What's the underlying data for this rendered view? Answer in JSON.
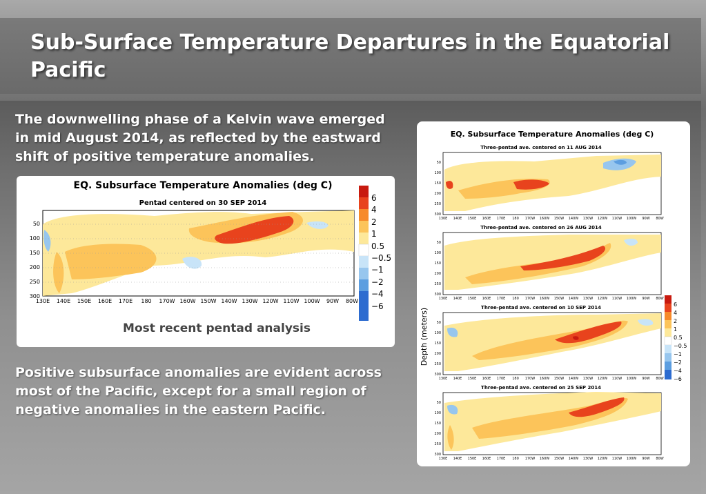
{
  "slide": {
    "title": "Sub-Surface Temperature Departures in the Equatorial Pacific",
    "paragraph1": "The downwelling phase of a Kelvin wave emerged in mid August 2014, as reflected by the eastward shift of positive temperature anomalies.",
    "paragraph2": "Positive subsurface anomalies are evident across most of the Pacific, except for a small region of negative anomalies in the eastern Pacific.",
    "caption": "Most recent pentad analysis"
  },
  "main_plot": {
    "title": "EQ. Subsurface Temperature Anomalies (deg C)",
    "subtitle": "Pentad centered on 30 SEP 2014"
  },
  "right_plot": {
    "title": "EQ. Subsurface Temperature Anomalies (deg C)",
    "ylabel": "Depth (meters)",
    "panels": [
      {
        "subtitle": "Three-pentad ave. centered on 11 AUG 2014"
      },
      {
        "subtitle": "Three-pentad ave. centered on 26 AUG 2014"
      },
      {
        "subtitle": "Three-pentad ave. centered on 10 SEP 2014"
      },
      {
        "subtitle": "Three-pentad ave. centered on 25 SEP 2014"
      }
    ]
  },
  "axes": {
    "x_ticks": [
      "130E",
      "140E",
      "150E",
      "160E",
      "170E",
      "180",
      "170W",
      "160W",
      "150W",
      "140W",
      "130W",
      "120W",
      "110W",
      "100W",
      "90W",
      "80W"
    ],
    "y_ticks": [
      "50",
      "100",
      "150",
      "200",
      "250",
      "300"
    ]
  },
  "legend": {
    "labels": [
      "6",
      "4",
      "2",
      "1",
      "0.5",
      "−0.5",
      "−1",
      "−2",
      "−4",
      "−6"
    ],
    "colors": [
      "#c81a0f",
      "#e8431d",
      "#f78a2a",
      "#fcc45a",
      "#fde89a",
      "#ffffff",
      "#c8e4f8",
      "#97c6ee",
      "#5c9ee0",
      "#2d6cd0"
    ]
  },
  "chart_data": [
    {
      "type": "heatmap",
      "title": "EQ. Subsurface Temperature Anomalies (deg C)",
      "subtitle": "Pentad centered on 30 SEP 2014",
      "x": [
        "130E",
        "140E",
        "150E",
        "160E",
        "170E",
        "180",
        "170W",
        "160W",
        "150W",
        "140W",
        "130W",
        "120W",
        "110W",
        "100W",
        "90W",
        "80W"
      ],
      "y": [
        "50",
        "100",
        "150",
        "200",
        "250",
        "300"
      ],
      "legend_levels": [
        6,
        4,
        2,
        1,
        0.5,
        -0.5,
        -1,
        -2,
        -4,
        -6
      ]
    },
    {
      "type": "heatmap",
      "subtitle": "Three-pentad ave. centered on 11 AUG 2014",
      "x": [
        "130E",
        "140E",
        "150E",
        "160E",
        "170E",
        "180",
        "170W",
        "160W",
        "150W",
        "140W",
        "130W",
        "120W",
        "110W",
        "100W",
        "90W",
        "80W"
      ],
      "y": [
        "50",
        "100",
        "150",
        "200",
        "250",
        "300"
      ]
    },
    {
      "type": "heatmap",
      "subtitle": "Three-pentad ave. centered on 26 AUG 2014",
      "x": [
        "130E",
        "140E",
        "150E",
        "160E",
        "170E",
        "180",
        "170W",
        "160W",
        "150W",
        "140W",
        "130W",
        "120W",
        "110W",
        "100W",
        "90W",
        "80W"
      ],
      "y": [
        "50",
        "100",
        "150",
        "200",
        "250",
        "300"
      ]
    },
    {
      "type": "heatmap",
      "subtitle": "Three-pentad ave. centered on 10 SEP 2014",
      "x": [
        "130E",
        "140E",
        "150E",
        "160E",
        "170E",
        "180",
        "170W",
        "160W",
        "150W",
        "140W",
        "130W",
        "120W",
        "110W",
        "100W",
        "90W",
        "80W"
      ],
      "y": [
        "50",
        "100",
        "150",
        "200",
        "250",
        "300"
      ]
    },
    {
      "type": "heatmap",
      "subtitle": "Three-pentad ave. centered on 25 SEP 2014",
      "x": [
        "130E",
        "140E",
        "150E",
        "160E",
        "170E",
        "180",
        "170W",
        "160W",
        "150W",
        "140W",
        "130W",
        "120W",
        "110W",
        "100W",
        "90W",
        "80W"
      ],
      "y": [
        "50",
        "100",
        "150",
        "200",
        "250",
        "300"
      ]
    }
  ]
}
